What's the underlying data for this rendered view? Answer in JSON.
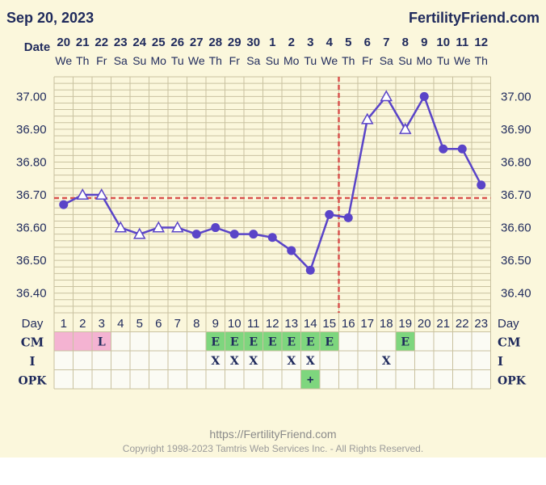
{
  "header": {
    "date": "Sep 20, 2023",
    "brand": "FertilityFriend.com"
  },
  "footer": {
    "url": "https://FertilityFriend.com",
    "copyright": "Copyright 1998-2023 Tamtris Web Services Inc. - All Rights Reserved."
  },
  "colors": {
    "line": "#5a44c8",
    "coverline": "#d9534f",
    "grid": "#c9c2a0",
    "panel": "#fbf7dc",
    "cm_pink": "#f4b3d2",
    "cm_green": "#7ed67e"
  },
  "chart_data": {
    "type": "line",
    "row_labels": {
      "date": "Date",
      "day": "Day",
      "cm": "CM",
      "intercourse": "I",
      "opk": "OPK"
    },
    "dates": [
      "20",
      "21",
      "22",
      "23",
      "24",
      "25",
      "26",
      "27",
      "28",
      "29",
      "30",
      "1",
      "2",
      "3",
      "4",
      "5",
      "6",
      "7",
      "8",
      "9",
      "10",
      "11",
      "12"
    ],
    "weekdays": [
      "We",
      "Th",
      "Fr",
      "Sa",
      "Su",
      "Mo",
      "Tu",
      "We",
      "Th",
      "Fr",
      "Sa",
      "Su",
      "Mo",
      "Tu",
      "We",
      "Th",
      "Fr",
      "Sa",
      "Su",
      "Mo",
      "Tu",
      "We",
      "Th"
    ],
    "cycle_days": [
      "1",
      "2",
      "3",
      "4",
      "5",
      "6",
      "7",
      "8",
      "9",
      "10",
      "11",
      "12",
      "13",
      "14",
      "15",
      "16",
      "17",
      "18",
      "19",
      "20",
      "21",
      "22",
      "23"
    ],
    "y_ticks": [
      "37.00",
      "36.90",
      "36.80",
      "36.70",
      "36.60",
      "36.50",
      "36.40"
    ],
    "ylim": [
      36.34,
      37.06
    ],
    "temps": [
      36.67,
      36.7,
      36.7,
      36.6,
      36.58,
      36.6,
      36.6,
      36.58,
      36.6,
      36.58,
      36.58,
      36.57,
      36.53,
      36.47,
      36.64,
      36.63,
      36.93,
      37.0,
      36.9,
      37.0,
      36.84,
      36.84,
      36.73
    ],
    "marker": [
      "dot",
      "tri",
      "tri",
      "tri",
      "tri",
      "tri",
      "tri",
      "dot",
      "dot",
      "dot",
      "dot",
      "dot",
      "dot",
      "dot",
      "dot",
      "dot",
      "tri",
      "tri",
      "tri",
      "dot",
      "dot",
      "dot",
      "dot"
    ],
    "coverline": 36.69,
    "ovulation_day": 16,
    "cm": [
      "",
      "",
      "L",
      "",
      "",
      "",
      "",
      "",
      "E",
      "E",
      "E",
      "E",
      "E",
      "E",
      "E",
      "",
      "",
      "",
      "E",
      "",
      "",
      "",
      ""
    ],
    "cm_color": [
      "pink",
      "pink",
      "pink",
      "",
      "",
      "",
      "",
      "",
      "green",
      "green",
      "green",
      "green",
      "green",
      "green",
      "green",
      "",
      "",
      "",
      "green",
      "",
      "",
      "",
      ""
    ],
    "intercourse": [
      "",
      "",
      "",
      "",
      "",
      "",
      "",
      "",
      "X",
      "X",
      "X",
      "",
      "X",
      "X",
      "",
      "",
      "",
      "X",
      "",
      "",
      "",
      "",
      ""
    ],
    "opk": [
      "",
      "",
      "",
      "",
      "",
      "",
      "",
      "",
      "",
      "",
      "",
      "",
      "",
      "+",
      "",
      "",
      "",
      "",
      "",
      "",
      "",
      "",
      ""
    ],
    "opk_color": [
      "",
      "",
      "",
      "",
      "",
      "",
      "",
      "",
      "",
      "",
      "",
      "",
      "",
      "green",
      "",
      "",
      "",
      "",
      "",
      "",
      "",
      "",
      ""
    ]
  }
}
